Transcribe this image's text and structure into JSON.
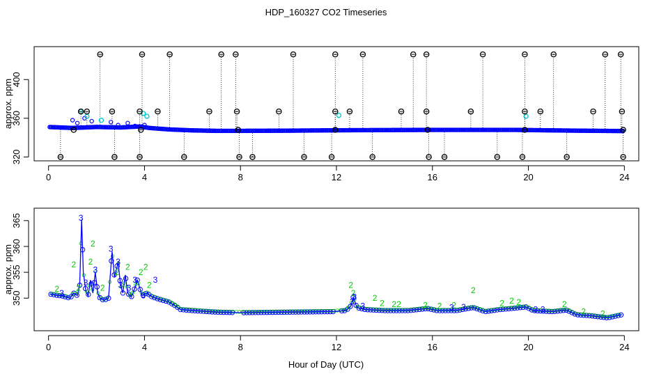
{
  "title": "HDP_160327  CO2 Timeseries",
  "xlabel": "Hour of Day (UTC)",
  "colors": {
    "line": "#0000ff",
    "points": "#0000ff",
    "raw_points": "#00cccc",
    "level2": "#00cc00",
    "level3": "#0000ff",
    "flag_marker": "#000000"
  },
  "chart_data": [
    {
      "type": "scatter",
      "panel": "top",
      "title": "",
      "xlabel": "",
      "ylabel": "approx. ppm",
      "xlim": [
        -0.6,
        24.6
      ],
      "ylim": [
        316,
        434
      ],
      "xticks": [
        0,
        4,
        8,
        12,
        16,
        20,
        24
      ],
      "yticks": [
        320,
        360,
        400
      ],
      "grid": false,
      "baseline": [
        [
          0,
          351
        ],
        [
          1,
          350
        ],
        [
          2,
          351
        ],
        [
          3,
          350.5
        ],
        [
          3.8,
          351.5
        ],
        [
          4.2,
          350
        ],
        [
          5,
          348.5
        ],
        [
          6,
          347.5
        ],
        [
          7,
          347
        ],
        [
          8,
          347
        ],
        [
          10,
          347.2
        ],
        [
          12,
          347.6
        ],
        [
          14,
          347.8
        ],
        [
          16,
          348
        ],
        [
          18,
          348
        ],
        [
          19.5,
          348
        ],
        [
          20,
          347.8
        ],
        [
          22,
          347.2
        ],
        [
          24,
          346.8
        ]
      ],
      "high_flags_x": [
        2.15,
        3.9,
        5.05,
        7.2,
        7.8,
        10.2,
        11.95,
        13.1,
        15.2,
        15.75,
        18.1,
        19.85,
        21.05,
        23.2,
        23.85
      ],
      "high_flag_value": 426,
      "low_flags_x": [
        0.5,
        2.75,
        3.8,
        5.65,
        7.95,
        8.5,
        10.65,
        11.8,
        13.5,
        15.85,
        16.5,
        18.7,
        19.75,
        21.6,
        23.95
      ],
      "low_flag_value": 320,
      "mid_flags_x": [
        1.35,
        1.6,
        2.65,
        3.8,
        4.55,
        6.7,
        7.85,
        9.6,
        11.95,
        12.55,
        14.7,
        15.75,
        17.6,
        19.85,
        20.5,
        22.7,
        23.9
      ],
      "mid_flag_value": 367,
      "near_flags_x": [
        1.05,
        3.85,
        7.9,
        11.95,
        15.8,
        19.85,
        23.95
      ],
      "near_flag_value": 348,
      "cyan_points": [
        [
          1.35,
          367
        ],
        [
          1.6,
          362
        ],
        [
          2.2,
          358
        ],
        [
          3.95,
          365
        ],
        [
          4.1,
          362
        ],
        [
          12.1,
          363
        ],
        [
          19.9,
          362
        ]
      ]
    },
    {
      "type": "line",
      "panel": "bottom",
      "title": "",
      "xlabel": "Hour of Day (UTC)",
      "ylabel": "approx. ppm",
      "xlim": [
        -0.6,
        24.6
      ],
      "ylim": [
        343.7,
        367.4
      ],
      "xticks": [
        0,
        4,
        8,
        12,
        16,
        20,
        24
      ],
      "yticks": [
        350,
        355,
        360,
        365
      ],
      "grid": false,
      "series": [
        {
          "points": [
            [
              0.05,
              350.8
            ],
            [
              0.3,
              350.6
            ],
            [
              0.6,
              350.4
            ],
            [
              0.9,
              350
            ],
            [
              1.05,
              351
            ],
            [
              1.2,
              350.5
            ],
            [
              1.3,
              352.5
            ],
            [
              1.38,
              365.2
            ],
            [
              1.45,
              355
            ],
            [
              1.55,
              351.5
            ],
            [
              1.65,
              350.4
            ],
            [
              1.75,
              353.5
            ],
            [
              1.85,
              351
            ],
            [
              1.95,
              355
            ],
            [
              2.05,
              351
            ],
            [
              2.15,
              350
            ],
            [
              2.3,
              349.6
            ],
            [
              2.5,
              350
            ],
            [
              2.65,
              359
            ],
            [
              2.75,
              354
            ],
            [
              2.9,
              357
            ],
            [
              3.0,
              352.5
            ],
            [
              3.1,
              351
            ],
            [
              3.2,
              354.5
            ],
            [
              3.3,
              351
            ],
            [
              3.45,
              350.2
            ],
            [
              3.6,
              352
            ],
            [
              3.7,
              353.5
            ],
            [
              3.8,
              352
            ],
            [
              3.9,
              350.5
            ],
            [
              4.1,
              351
            ],
            [
              4.3,
              350.3
            ],
            [
              4.6,
              349.8
            ],
            [
              5.0,
              349.3
            ],
            [
              5.3,
              348.5
            ],
            [
              5.5,
              347.8
            ],
            [
              6.0,
              347.6
            ],
            [
              7.0,
              347.3
            ],
            [
              7.9,
              347.2
            ],
            [
              8.1,
              347.2
            ],
            [
              10,
              347.3
            ],
            [
              11.9,
              347.4
            ],
            [
              12.1,
              347.5
            ],
            [
              12.4,
              347.6
            ],
            [
              12.6,
              348.5
            ],
            [
              12.7,
              350.2
            ],
            [
              12.85,
              348.2
            ],
            [
              13.2,
              347.8
            ],
            [
              14,
              347.6
            ],
            [
              15,
              347.6
            ],
            [
              15.8,
              348
            ],
            [
              16.2,
              347.6
            ],
            [
              17,
              347.6
            ],
            [
              17.7,
              348.2
            ],
            [
              18.2,
              347.4
            ],
            [
              18.8,
              347.8
            ],
            [
              19.3,
              348
            ],
            [
              19.9,
              348.3
            ],
            [
              20.2,
              347.6
            ],
            [
              21,
              347.4
            ],
            [
              21.6,
              347.7
            ],
            [
              22,
              346.8
            ],
            [
              22.6,
              346.6
            ],
            [
              23.3,
              346.2
            ],
            [
              23.9,
              346.8
            ]
          ]
        }
      ],
      "level2_labels": [
        [
          0.35,
          351.8
        ],
        [
          1.05,
          356.5
        ],
        [
          1.25,
          352
        ],
        [
          1.75,
          357
        ],
        [
          1.85,
          360.5
        ],
        [
          2.25,
          352
        ],
        [
          2.85,
          355
        ],
        [
          3.3,
          356
        ],
        [
          3.85,
          355
        ],
        [
          4.05,
          356
        ],
        [
          4.2,
          352.5
        ],
        [
          12.6,
          352.5
        ],
        [
          12.7,
          351
        ],
        [
          13.6,
          350
        ],
        [
          13.9,
          349
        ],
        [
          14.4,
          348.8
        ],
        [
          14.6,
          348.8
        ],
        [
          15.7,
          348.6
        ],
        [
          16.3,
          348.5
        ],
        [
          16.9,
          348.6
        ],
        [
          17.7,
          351.5
        ],
        [
          18.9,
          349
        ],
        [
          19.3,
          349.5
        ],
        [
          19.6,
          349.2
        ],
        [
          21.5,
          348.8
        ],
        [
          22.3,
          347.4
        ],
        [
          23.1,
          347
        ]
      ],
      "level3_labels": [
        [
          0.55,
          351
        ],
        [
          1.35,
          365.5
        ],
        [
          1.55,
          353
        ],
        [
          1.95,
          355.5
        ],
        [
          2.6,
          359.5
        ],
        [
          2.9,
          357
        ],
        [
          3.0,
          352.5
        ],
        [
          3.35,
          352
        ],
        [
          3.6,
          353.5
        ],
        [
          3.95,
          350.5
        ],
        [
          4.45,
          353.5
        ],
        [
          12.75,
          350.2
        ],
        [
          12.65,
          349.3
        ],
        [
          13.1,
          348.5
        ],
        [
          16.8,
          348.2
        ],
        [
          17.3,
          348.3
        ],
        [
          20.3,
          347.8
        ],
        [
          20.6,
          347.8
        ]
      ],
      "level2_glyph": "2",
      "level3_glyph": "3"
    }
  ]
}
